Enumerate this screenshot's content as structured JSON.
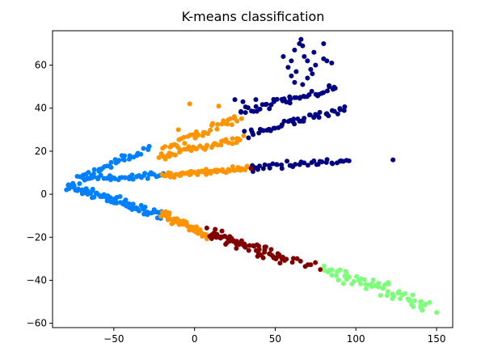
{
  "chart_data": {
    "type": "scatter",
    "title": "K-means classification",
    "xlabel": "",
    "ylabel": "",
    "xlim": [
      -88,
      160
    ],
    "ylim": [
      -62,
      76
    ],
    "xticks": [
      -50,
      0,
      50,
      100,
      150
    ],
    "yticks": [
      -60,
      -40,
      -20,
      0,
      20,
      40,
      60
    ],
    "grid": false,
    "legend": "none",
    "clusters": [
      {
        "color": "#0080ff",
        "segments": [
          {
            "from": [
              -80,
              5
            ],
            "to": [
              -20,
              -10
            ],
            "n": 90,
            "spread": 1.5
          },
          {
            "from": [
              -72,
              7
            ],
            "to": [
              -20,
              9
            ],
            "n": 45,
            "spread": 1.0
          },
          {
            "from": [
              -68,
              8
            ],
            "to": [
              -28,
              21
            ],
            "n": 35,
            "spread": 1.6
          }
        ],
        "points": [
          [
            -45,
            18
          ]
        ]
      },
      {
        "color": "#ff9400",
        "segments": [
          {
            "from": [
              -20,
              -10
            ],
            "to": [
              8,
              -19
            ],
            "n": 55,
            "spread": 1.5
          },
          {
            "from": [
              -20,
              9
            ],
            "to": [
              33,
              12
            ],
            "n": 60,
            "spread": 1.0
          },
          {
            "from": [
              -22,
              17
            ],
            "to": [
              30,
              26
            ],
            "n": 45,
            "spread": 1.2
          },
          {
            "from": [
              -20,
              21
            ],
            "to": [
              28,
              36
            ],
            "n": 40,
            "spread": 1.5
          }
        ],
        "points": [
          [
            -3,
            42
          ],
          [
            15,
            41
          ],
          [
            -10,
            30
          ],
          [
            26,
            24
          ]
        ]
      },
      {
        "color": "#000080",
        "segments": [
          {
            "from": [
              35,
              12
            ],
            "to": [
              95,
              16
            ],
            "n": 40,
            "spread": 1.2
          },
          {
            "from": [
              32,
              28
            ],
            "to": [
              93,
              40
            ],
            "n": 45,
            "spread": 1.5
          },
          {
            "from": [
              28,
              38
            ],
            "to": [
              88,
              50
            ],
            "n": 45,
            "spread": 1.5
          }
        ],
        "points": [
          [
            123,
            16
          ],
          [
            25,
            44
          ],
          [
            30,
            43
          ],
          [
            38,
            44
          ],
          [
            55,
            64
          ],
          [
            58,
            59
          ],
          [
            60,
            62
          ],
          [
            62,
            67
          ],
          [
            65,
            70
          ],
          [
            66,
            72
          ],
          [
            67,
            69
          ],
          [
            68,
            64
          ],
          [
            70,
            62
          ],
          [
            72,
            58
          ],
          [
            73,
            56
          ],
          [
            74,
            66
          ],
          [
            75,
            60
          ],
          [
            80,
            63
          ],
          [
            80,
            70
          ],
          [
            82,
            62
          ],
          [
            85,
            61
          ],
          [
            60,
            55
          ],
          [
            62,
            52
          ],
          [
            63,
            57
          ],
          [
            67,
            51
          ],
          [
            70,
            54
          ]
        ]
      },
      {
        "color": "#800000",
        "segments": [
          {
            "from": [
              8,
              -18
            ],
            "to": [
              55,
              -30
            ],
            "n": 70,
            "spread": 1.8
          },
          {
            "from": [
              55,
              -30
            ],
            "to": [
              75,
              -33
            ],
            "n": 10,
            "spread": 1.2
          }
        ],
        "points": [
          [
            35,
            12
          ],
          [
            78,
            -35
          ]
        ]
      },
      {
        "color": "#7dff7a",
        "segments": [
          {
            "from": [
              80,
              -35
            ],
            "to": [
              145,
              -52
            ],
            "n": 60,
            "spread": 2.0
          }
        ],
        "points": [
          [
            150,
            -55
          ],
          [
            143,
            -51
          ],
          [
            140,
            -50
          ],
          [
            120,
            -41
          ],
          [
            118,
            -42
          ]
        ]
      }
    ]
  }
}
